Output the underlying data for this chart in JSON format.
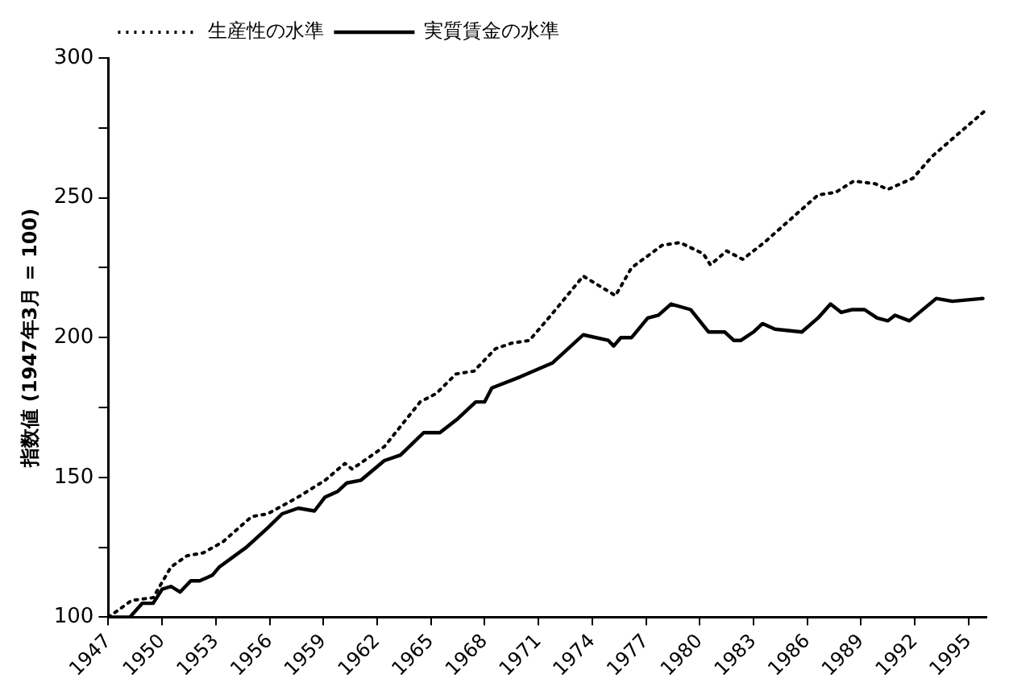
{
  "chart_data": {
    "type": "line",
    "ylabel": "指数値 (1947年3月 = 100)",
    "xlim": [
      1947,
      1996
    ],
    "xticks": [
      1947,
      1950,
      1953,
      1956,
      1959,
      1962,
      1965,
      1968,
      1971,
      1974,
      1977,
      1980,
      1983,
      1986,
      1989,
      1992,
      1995
    ],
    "ylim": [
      100,
      300
    ],
    "yticks": [
      100,
      {
        "value": 125,
        "label": null
      },
      150,
      {
        "value": 175,
        "label": null
      },
      200,
      {
        "value": 225,
        "label": null
      },
      250,
      {
        "value": 275,
        "label": null
      },
      300
    ],
    "grid": false,
    "legend": "top left",
    "marker": "none",
    "series": [
      {
        "name": "生産性の水準",
        "color": "#000000",
        "line_style": "dotted",
        "x": [
          1947,
          1948.3,
          1949.5,
          1950.5,
          1951.4,
          1952.3,
          1953.4,
          1955.0,
          1955.9,
          1957.6,
          1959.1,
          1960.2,
          1960.6,
          1962.4,
          1964.4,
          1965.3,
          1966.4,
          1967.4,
          1968.6,
          1969.5,
          1970.5,
          1971.7,
          1973.5,
          1975.3,
          1976.2,
          1977.9,
          1978.9,
          1980.2,
          1980.6,
          1981.5,
          1982.4,
          1983.6,
          1986.6,
          1987.6,
          1988.6,
          1989.8,
          1990.5,
          1991.9,
          1993.0,
          1995.9
        ],
        "values": [
          100,
          106,
          107,
          118,
          122,
          123,
          127,
          136,
          137,
          143,
          149,
          155,
          153,
          161,
          177,
          180,
          187,
          188,
          196,
          198,
          199,
          208,
          222,
          215,
          225,
          233,
          234,
          230,
          226,
          231,
          228,
          234,
          251,
          252,
          256,
          255,
          253,
          257,
          265,
          281
        ]
      },
      {
        "name": "実質賃金の水準",
        "color": "#000000",
        "line_style": "solid",
        "x": [
          1947,
          1948.2,
          1948.9,
          1949.5,
          1950.0,
          1950.5,
          1951.0,
          1951.6,
          1952.1,
          1952.8,
          1953.2,
          1954.7,
          1955.9,
          1956.7,
          1957.6,
          1958.5,
          1959.1,
          1959.8,
          1960.3,
          1961.1,
          1962.4,
          1963.3,
          1964.6,
          1965.5,
          1966.5,
          1967.5,
          1968.0,
          1968.4,
          1970.0,
          1971.8,
          1973.5,
          1974.9,
          1975.2,
          1975.6,
          1976.2,
          1977.1,
          1977.7,
          1978.4,
          1979.5,
          1980.5,
          1981.4,
          1981.9,
          1982.3,
          1983.0,
          1983.5,
          1984.2,
          1985.7,
          1986.6,
          1987.3,
          1987.9,
          1988.5,
          1989.2,
          1989.9,
          1990.5,
          1990.9,
          1991.7,
          1993.2,
          1994.1,
          1995.8
        ],
        "values": [
          100,
          100,
          105,
          105,
          110,
          111,
          109,
          113,
          113,
          115,
          118,
          125,
          132,
          137,
          139,
          138,
          143,
          145,
          148,
          149,
          156,
          158,
          166,
          166,
          171,
          177,
          177,
          182,
          186,
          191,
          201,
          199,
          197,
          200,
          200,
          207,
          208,
          212,
          210,
          202,
          202,
          199,
          199,
          202,
          205,
          203,
          202,
          207,
          212,
          209,
          210,
          210,
          207,
          206,
          208,
          206,
          214,
          213,
          214
        ]
      }
    ]
  }
}
